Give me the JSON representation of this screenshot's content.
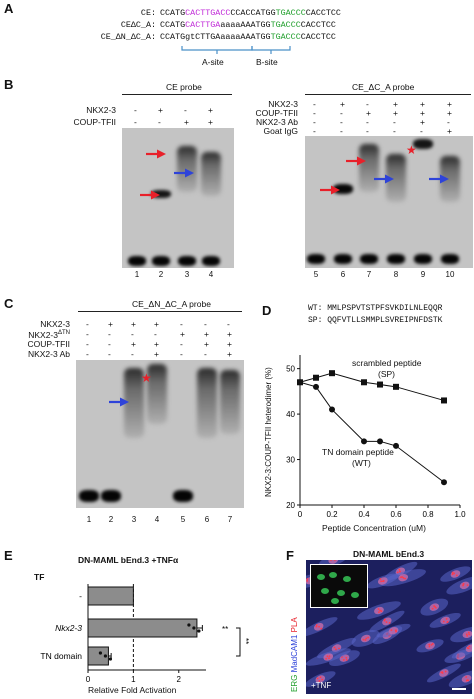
{
  "panelA": {
    "label": "A",
    "rows": [
      {
        "name": "CE:",
        "seq": [
          "CCATG",
          "CACTTGACC",
          "CCACCATGG",
          "TGACCC",
          "CACCTCC"
        ]
      },
      {
        "name": "CEΔC_A:",
        "seq": [
          "CCATG",
          "CACTTGA",
          "aaaaAAATGG",
          "TGACCC",
          "CACCTCC"
        ]
      },
      {
        "name": "CE_ΔN_ΔC_A:",
        "seq": [
          "CCATGgtCTTGA",
          "aaaaAAATGG",
          "TGACCC",
          "CACCTCC"
        ]
      }
    ],
    "sites": {
      "a": "A-site",
      "b": "B-site"
    }
  },
  "panelB": {
    "label": "B",
    "left": {
      "title": "CE probe",
      "rows": [
        {
          "name": "NKX2-3",
          "marks": [
            "-",
            "+",
            "-",
            "+"
          ]
        },
        {
          "name": "COUP-TFII",
          "marks": [
            "-",
            "-",
            "+",
            "+"
          ]
        }
      ],
      "lanes": [
        "1",
        "2",
        "3",
        "4"
      ]
    },
    "right": {
      "title": "CE_ΔC_A probe",
      "rows": [
        {
          "name": "NKX2-3",
          "marks": [
            "-",
            "+",
            "-",
            "+",
            "+",
            "+"
          ]
        },
        {
          "name": "COUP-TFII",
          "marks": [
            "-",
            "-",
            "+",
            "+",
            "+",
            "+"
          ]
        },
        {
          "name": "NKX2-3 Ab",
          "marks": [
            "-",
            "-",
            "-",
            "-",
            "+",
            "-"
          ]
        },
        {
          "name": "Goat IgG",
          "marks": [
            "-",
            "-",
            "-",
            "-",
            "-",
            "+"
          ]
        }
      ],
      "lanes": [
        "5",
        "6",
        "7",
        "8",
        "9",
        "10"
      ]
    }
  },
  "panelC": {
    "label": "C",
    "title": "CE_ΔN_ΔC_A probe",
    "rows": [
      {
        "name": "NKX2-3",
        "marks": [
          "-",
          "+",
          "+",
          "+",
          "-",
          "-",
          "-"
        ]
      },
      {
        "name": "NKX2-3",
        "sup": "ΔTN",
        "marks": [
          "-",
          "-",
          "-",
          "-",
          "+",
          "+",
          "+"
        ]
      },
      {
        "name": "COUP-TFII",
        "marks": [
          "-",
          "-",
          "+",
          "+",
          "-",
          "+",
          "+"
        ]
      },
      {
        "name": "NKX2-3 Ab",
        "marks": [
          "-",
          "-",
          "-",
          "+",
          "-",
          "-",
          "+"
        ]
      }
    ],
    "lanes": [
      "1",
      "2",
      "3",
      "4",
      "5",
      "6",
      "7"
    ]
  },
  "panelD": {
    "label": "D",
    "wt": "WT: MMLPSPVTSTPFSVKDILNLEQQR",
    "sp": "SP: QQFVTLLSMMPLSVREIPNFDSTK",
    "ylabel": "NKX2-3:COUP-TFII heterodimer (%)",
    "xlabel": "Peptide Concentration (uM)",
    "ann_sp": "scrambled peptide",
    "ann_sp2": "(SP)",
    "ann_wt": "TN domain peptide",
    "ann_wt2": "(WT)",
    "yticks": [
      "50",
      "40",
      "30",
      "20"
    ],
    "xticks": [
      "0",
      "0.2",
      "0.4",
      "0.6",
      "0.8",
      "1.0"
    ]
  },
  "chart_data": {
    "type": "line",
    "xlabel": "Peptide Concentration (uM)",
    "ylabel": "NKX2-3:COUP-TFII heterodimer (%)",
    "xlim": [
      0,
      1.0
    ],
    "ylim": [
      20,
      53
    ],
    "series": [
      {
        "name": "scrambled peptide (SP)",
        "x": [
          0,
          0.1,
          0.2,
          0.4,
          0.5,
          0.6,
          0.9
        ],
        "y": [
          47,
          48,
          49,
          47,
          46.5,
          46,
          43
        ]
      },
      {
        "name": "TN domain peptide (WT)",
        "x": [
          0,
          0.1,
          0.2,
          0.4,
          0.5,
          0.6,
          0.9
        ],
        "y": [
          47,
          46,
          41,
          34,
          34,
          33,
          25
        ]
      }
    ]
  },
  "panelE": {
    "label": "E",
    "title": "DN-MAML bEnd.3 +TNFα",
    "tf": "TF",
    "cats": [
      "-",
      "Nkx2-3",
      "TN domain"
    ],
    "values": [
      1.0,
      2.4,
      0.45
    ],
    "errors": [
      0,
      0.12,
      0.06
    ],
    "sig1": "**",
    "sig2": "**",
    "xticks": [
      "0",
      "1",
      "2"
    ],
    "xlabel": "Relative Fold Activation"
  },
  "panelF": {
    "label": "F",
    "title": "DN-MAML bEnd.3",
    "ch_erg": "ERG",
    "ch_madcam": "MadCAM1",
    "ch_pla": "PLA",
    "tnf": "+TNF"
  },
  "colors": {
    "magenta": "#c02ad8",
    "green": "#1e9e2a",
    "blue": "#2e43d9",
    "red": "#e8202a",
    "bracket": "#4a90c8"
  }
}
